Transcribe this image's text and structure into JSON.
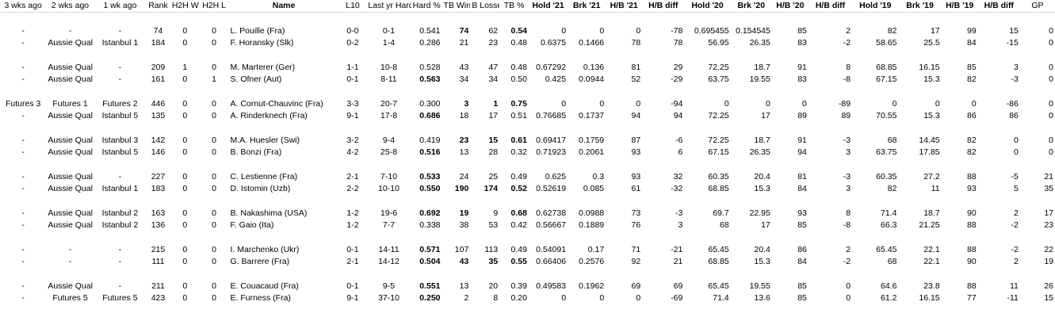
{
  "headers": [
    "3 wks ago",
    "2 wks ago",
    "1 wk ago",
    "Rank",
    "H2H W",
    "H2H L",
    "Name",
    "L10",
    "Last yr Hard",
    "Hard %",
    "TB Wins",
    "B Losse",
    "TB %",
    "Hold '21",
    "Brk '21",
    "H/B '21",
    "H/B diff",
    "Hold '20",
    "Brk '20",
    "H/B '20",
    "H/B diff",
    "Hold '19",
    "Brk '19",
    "H/B '19",
    "H/B diff",
    "GP"
  ],
  "groups": [
    [
      [
        "-",
        "-",
        "-",
        "74",
        "0",
        "0",
        "L. Pouille (Fra)",
        "0-0",
        "0-1",
        "0.541",
        "74",
        "62",
        "0.54",
        "0",
        "0",
        "0",
        "-78",
        "0.695455",
        "0.154545",
        "85",
        "2",
        "82",
        "17",
        "99",
        "15",
        "0"
      ],
      [
        "-",
        "Aussie Qual",
        "Istanbul 1",
        "184",
        "0",
        "0",
        "F. Horansky (Slk)",
        "0-2",
        "1-4",
        "0.286",
        "21",
        "23",
        "0.48",
        "0.6375",
        "0.1466",
        "78",
        "78",
        "56.95",
        "26.35",
        "83",
        "-2",
        "58.65",
        "25.5",
        "84",
        "-15",
        "0"
      ]
    ],
    [
      [
        "-",
        "Aussie Qual",
        "-",
        "209",
        "1",
        "0",
        "M. Marterer (Ger)",
        "1-1",
        "10-8",
        "0.528",
        "43",
        "47",
        "0.48",
        "0.67292",
        "0.136",
        "81",
        "29",
        "72.25",
        "18.7",
        "91",
        "8",
        "68.85",
        "16.15",
        "85",
        "3",
        "0"
      ],
      [
        "-",
        "Aussie Qual",
        "-",
        "161",
        "0",
        "1",
        "S. Ofner (Aut)",
        "0-1",
        "8-11",
        "0.563",
        "34",
        "34",
        "0.50",
        "0.425",
        "0.0944",
        "52",
        "-29",
        "63.75",
        "19.55",
        "83",
        "-8",
        "67.15",
        "15.3",
        "82",
        "-3",
        "0"
      ]
    ],
    [
      [
        "Futures 3",
        "Futures 1",
        "Futures 2",
        "446",
        "0",
        "0",
        "A. Cornut-Chauvinc (Fra)",
        "3-3",
        "20-7",
        "0.300",
        "3",
        "1",
        "0.75",
        "0",
        "0",
        "0",
        "-94",
        "0",
        "0",
        "0",
        "-89",
        "0",
        "0",
        "0",
        "-86",
        "0"
      ],
      [
        "-",
        "Aussie Qual",
        "Istanbul 5",
        "135",
        "0",
        "0",
        "A. Rinderknech (Fra)",
        "9-1",
        "17-8",
        "0.686",
        "18",
        "17",
        "0.51",
        "0.76685",
        "0.1737",
        "94",
        "94",
        "72.25",
        "17",
        "89",
        "89",
        "70.55",
        "15.3",
        "86",
        "86",
        "0"
      ]
    ],
    [
      [
        "-",
        "Aussie Qual",
        "Istanbul 3",
        "142",
        "0",
        "0",
        "M.A. Huesler (Swi)",
        "3-2",
        "9-4",
        "0.419",
        "23",
        "15",
        "0.61",
        "0.69417",
        "0.1759",
        "87",
        "-6",
        "72.25",
        "18.7",
        "91",
        "-3",
        "68",
        "14.45",
        "82",
        "0",
        "0"
      ],
      [
        "-",
        "Aussie Qual",
        "Istanbul 5",
        "146",
        "0",
        "0",
        "B. Bonzi (Fra)",
        "4-2",
        "25-8",
        "0.516",
        "13",
        "28",
        "0.32",
        "0.71923",
        "0.2061",
        "93",
        "6",
        "67.15",
        "26.35",
        "94",
        "3",
        "63.75",
        "17.85",
        "82",
        "0",
        "0"
      ]
    ],
    [
      [
        "-",
        "Aussie Qual",
        "-",
        "227",
        "0",
        "0",
        "C. Lestienne (Fra)",
        "2-1",
        "7-10",
        "0.533",
        "24",
        "25",
        "0.49",
        "0.625",
        "0.3",
        "93",
        "32",
        "60.35",
        "20.4",
        "81",
        "-3",
        "60.35",
        "27.2",
        "88",
        "-5",
        "21"
      ],
      [
        "-",
        "Aussie Qual",
        "Istanbul 1",
        "183",
        "0",
        "0",
        "D. Istomin (Uzb)",
        "2-2",
        "10-10",
        "0.550",
        "190",
        "174",
        "0.52",
        "0.52619",
        "0.085",
        "61",
        "-32",
        "68.85",
        "15.3",
        "84",
        "3",
        "82",
        "11",
        "93",
        "5",
        "35"
      ]
    ],
    [
      [
        "-",
        "Aussie Qual",
        "Istanbul 2",
        "163",
        "0",
        "0",
        "B. Nakashima (USA)",
        "1-2",
        "19-6",
        "0.692",
        "19",
        "9",
        "0.68",
        "0.62738",
        "0.0988",
        "73",
        "-3",
        "69.7",
        "22.95",
        "93",
        "8",
        "71.4",
        "18.7",
        "90",
        "2",
        "17"
      ],
      [
        "-",
        "Aussie Qual",
        "Istanbul 2",
        "136",
        "0",
        "0",
        "F. Gaio (Ita)",
        "1-2",
        "7-7",
        "0.338",
        "38",
        "53",
        "0.42",
        "0.56667",
        "0.1889",
        "76",
        "3",
        "68",
        "17",
        "85",
        "-8",
        "66.3",
        "21.25",
        "88",
        "-2",
        "23"
      ]
    ],
    [
      [
        "-",
        "-",
        "-",
        "215",
        "0",
        "0",
        "I. Marchenko (Ukr)",
        "0-1",
        "14-11",
        "0.571",
        "107",
        "113",
        "0.49",
        "0.54091",
        "0.17",
        "71",
        "-21",
        "65.45",
        "20.4",
        "86",
        "2",
        "65.45",
        "22.1",
        "88",
        "-2",
        "22"
      ],
      [
        "-",
        "-",
        "-",
        "111",
        "0",
        "0",
        "G. Barrere (Fra)",
        "2-1",
        "14-12",
        "0.504",
        "43",
        "35",
        "0.55",
        "0.66406",
        "0.2576",
        "92",
        "21",
        "68.85",
        "15.3",
        "84",
        "-2",
        "68",
        "22.1",
        "90",
        "2",
        "19"
      ]
    ],
    [
      [
        "-",
        "Aussie Qual",
        "-",
        "211",
        "0",
        "0",
        "E. Couacaud (Fra)",
        "0-1",
        "9-5",
        "0.551",
        "13",
        "20",
        "0.39",
        "0.49583",
        "0.1962",
        "69",
        "69",
        "65.45",
        "19.55",
        "85",
        "0",
        "64.6",
        "23.8",
        "88",
        "11",
        "26"
      ],
      [
        "-",
        "Futures 5",
        "Futures 5",
        "423",
        "0",
        "0",
        "E. Furness (Fra)",
        "9-1",
        "37-10",
        "0.250",
        "2",
        "8",
        "0.20",
        "0",
        "0",
        "0",
        "-69",
        "71.4",
        "13.6",
        "85",
        "0",
        "61.2",
        "16.15",
        "77",
        "-11",
        "15"
      ]
    ]
  ],
  "bold": [
    [
      [
        10,
        12
      ],
      []
    ],
    [
      [],
      [
        9
      ]
    ],
    [
      [
        10,
        11,
        12
      ],
      [
        9
      ]
    ],
    [
      [
        10,
        11,
        12
      ],
      [
        9
      ]
    ],
    [
      [
        9
      ],
      [
        9,
        10,
        11,
        12
      ]
    ],
    [
      [
        9,
        10,
        12
      ],
      []
    ],
    [
      [
        9
      ],
      [
        9,
        10,
        11,
        12
      ]
    ],
    [
      [
        9
      ],
      [
        9
      ]
    ]
  ]
}
